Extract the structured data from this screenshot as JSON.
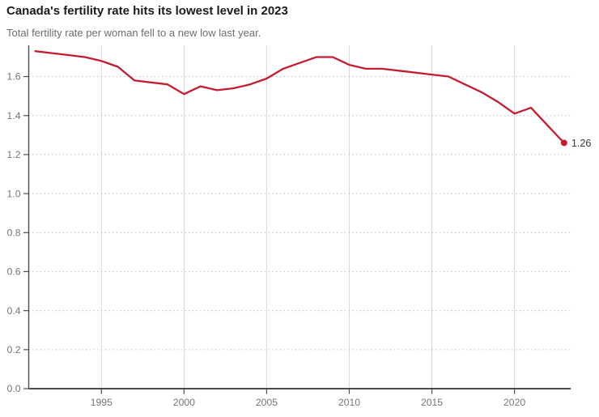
{
  "header": {
    "title": "Canada's fertility rate hits its lowest level in 2023",
    "subtitle": "Total fertility rate per woman fell to a new low last year."
  },
  "chart_data": {
    "type": "line",
    "title": "Canada's fertility rate hits its lowest level in 2023",
    "subtitle": "Total fertility rate per woman fell to a new low last year.",
    "series_name": "Total fertility rate per woman",
    "x": [
      1991,
      1992,
      1993,
      1994,
      1995,
      1996,
      1997,
      1998,
      1999,
      2000,
      2001,
      2002,
      2003,
      2004,
      2005,
      2006,
      2007,
      2008,
      2009,
      2010,
      2011,
      2012,
      2013,
      2014,
      2015,
      2016,
      2017,
      2018,
      2019,
      2020,
      2021,
      2022,
      2023
    ],
    "values": [
      1.73,
      1.72,
      1.71,
      1.7,
      1.68,
      1.65,
      1.58,
      1.57,
      1.56,
      1.51,
      1.55,
      1.53,
      1.54,
      1.56,
      1.59,
      1.64,
      1.67,
      1.7,
      1.7,
      1.66,
      1.64,
      1.64,
      1.63,
      1.62,
      1.61,
      1.6,
      1.56,
      1.52,
      1.47,
      1.41,
      1.44,
      1.35,
      1.26
    ],
    "end_label": "1.26",
    "end_value": 1.26,
    "end_year": 2023,
    "xlim": [
      1990.6,
      2023.4
    ],
    "ylim": [
      0,
      1.76
    ],
    "x_ticks": [
      1995,
      2000,
      2005,
      2010,
      2015,
      2020
    ],
    "x_tick_labels": [
      "1995",
      "2000",
      "2005",
      "2010",
      "2015",
      "2020"
    ],
    "y_ticks": [
      0,
      0.2,
      0.4,
      0.6,
      0.8,
      1.0,
      1.2,
      1.4,
      1.6
    ],
    "y_tick_labels": [
      "0.0",
      "0.2",
      "0.4",
      "0.6",
      "0.8",
      "1.0",
      "1.2",
      "1.4",
      "1.6"
    ],
    "grid": {
      "vertical": "solid",
      "horizontal": "dotted",
      "legend": "none"
    },
    "colors": {
      "line": "#c41d30",
      "dot": "#c41d30",
      "title": "#1a1a1a",
      "subtitle": "#6d6d6d",
      "tick_label": "#757575",
      "grid_vertical": "#d9d9d9",
      "grid_dotted": "#c8c8c8",
      "axis": "#4d4d4d",
      "end_label": "#3b3b3b"
    }
  }
}
